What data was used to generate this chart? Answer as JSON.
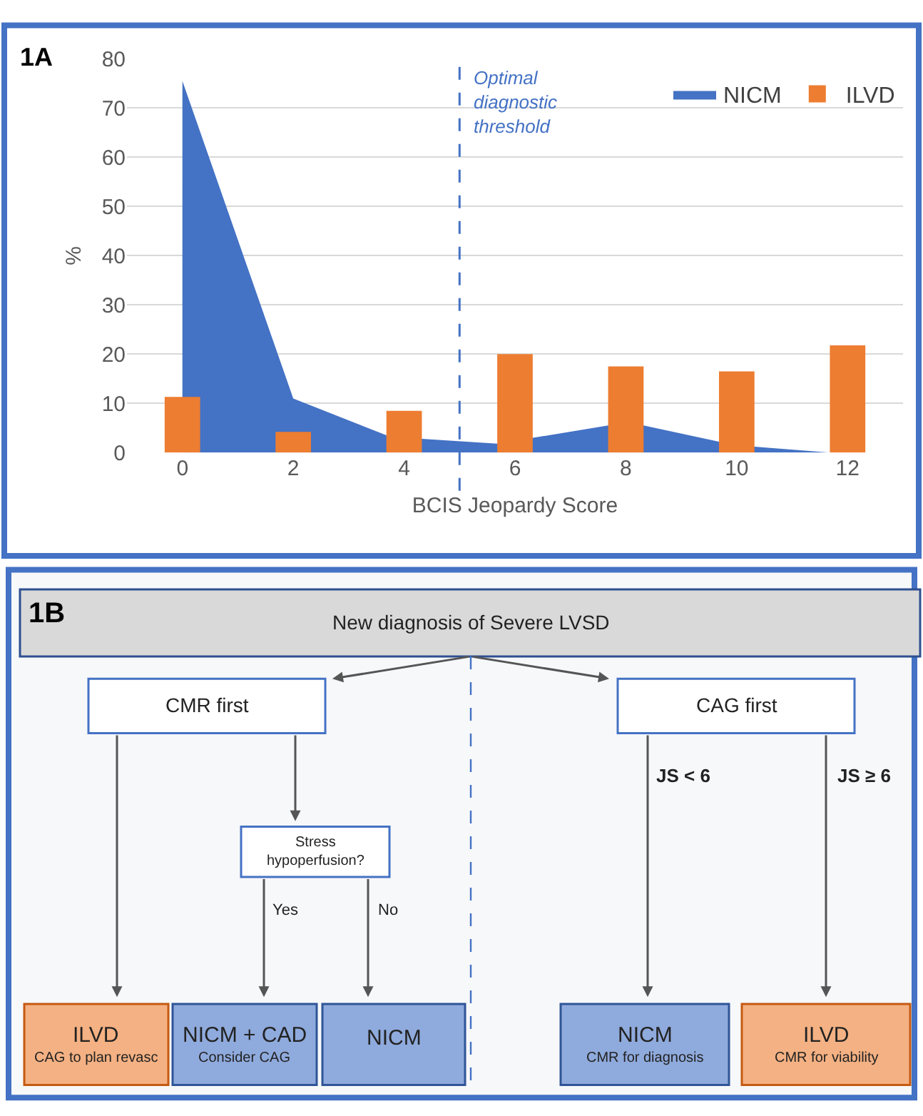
{
  "chart_data": [
    {
      "type": "bar",
      "title": "1A",
      "xlabel": "BCIS Jeopardy Score",
      "ylabel": "%",
      "x": [
        0,
        2,
        4,
        6,
        8,
        10,
        12
      ],
      "series": [
        {
          "name": "NICM",
          "type": "area",
          "color": "#4472c4",
          "x": [
            0,
            2,
            3.68,
            4.32,
            5.68,
            7.68,
            8.32,
            9.68,
            10.32,
            11.68
          ],
          "values": [
            75.5,
            11,
            3.5,
            2.8,
            1.8,
            5.5,
            5.5,
            2.2,
            1.2,
            0
          ]
        },
        {
          "name": "ILVD",
          "type": "bar",
          "color": "#ed7d31",
          "values": [
            11.3,
            4.2,
            8.5,
            20,
            17.5,
            16.5,
            21.8
          ]
        }
      ],
      "xlim": [
        -1,
        13
      ],
      "xticks": [
        0,
        2,
        4,
        6,
        8,
        10,
        12
      ],
      "ylim": [
        0,
        80
      ],
      "yticks": [
        0,
        10,
        20,
        30,
        40,
        50,
        60,
        70,
        80
      ],
      "grid": "y",
      "legend": "top right",
      "ref_lines": [
        {
          "axis": "x",
          "value": 5,
          "label": "Optimal diagnostic threshold",
          "color": "#4472c4",
          "line_style": "dashed"
        }
      ]
    },
    {
      "type": "other",
      "title": "1B",
      "annotations": [
        "New diagnosis of Severe LVSD",
        "CMR first",
        "CAG first",
        "Stress hypoperfusion?",
        "Yes",
        "No",
        "JS < 6",
        "JS ≥ 6",
        "ILVD",
        "CAG to plan revasc",
        "NICM + CAD",
        "Consider CAG",
        "NICM",
        "NICM",
        "CMR for diagnosis",
        "ILVD",
        "CMR for viability"
      ]
    }
  ]
}
